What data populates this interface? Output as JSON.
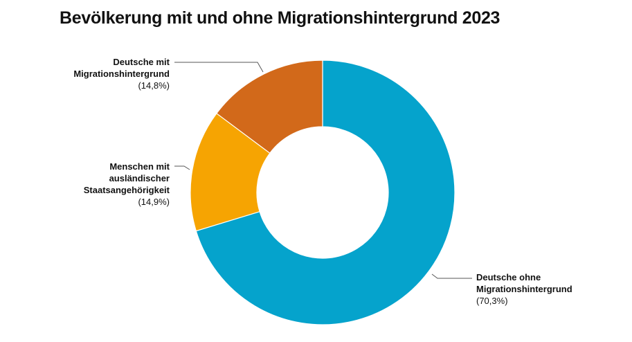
{
  "title": "Bevölkerung mit und ohne Migrationshintergrund 2023",
  "chart_data": {
    "type": "pie",
    "donut": true,
    "title": "Bevölkerung mit und ohne Migrationshintergrund 2023",
    "slices": [
      {
        "label": "Deutsche ohne Migrationshintergrund",
        "value": 70.3,
        "value_label": "(70,3%)",
        "color": "#05a3cc"
      },
      {
        "label": "Menschen mit ausländischer Staatsangehörigkeit",
        "value": 14.9,
        "value_label": "(14,9%)",
        "color": "#f6a402"
      },
      {
        "label": "Deutsche mit Migrationshintergrund",
        "value": 14.8,
        "value_label": "(14,8%)",
        "color": "#d2691a"
      }
    ],
    "legend": "none"
  }
}
